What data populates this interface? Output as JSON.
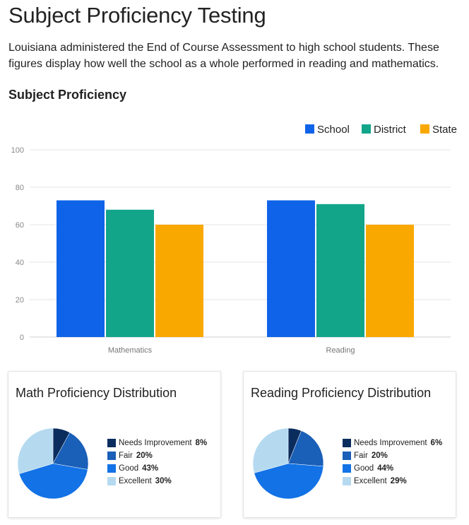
{
  "page": {
    "title": "Subject Proficiency Testing",
    "intro": "Louisiana administered the End of Course Assessment to high school students. These figures display how well the school as a whole performed in reading and mathematics.",
    "section_heading": "Subject Proficiency"
  },
  "chart_data": [
    {
      "type": "bar",
      "title": "Subject Proficiency",
      "categories": [
        "Mathematics",
        "Reading"
      ],
      "series": [
        {
          "name": "School",
          "values": [
            73,
            73
          ],
          "color": "#0f63e8"
        },
        {
          "name": "District",
          "values": [
            68,
            71
          ],
          "color": "#12a58a"
        },
        {
          "name": "State",
          "values": [
            60,
            60
          ],
          "color": "#f9a800"
        }
      ],
      "ylim": [
        0,
        100
      ],
      "yticks": [
        0,
        20,
        40,
        60,
        80,
        100
      ],
      "xlabel": "",
      "ylabel": "",
      "grid": true,
      "legend": "top-right"
    },
    {
      "type": "pie",
      "title": "Math Proficiency Distribution",
      "slices": [
        {
          "label": "Needs Improvement",
          "value": 8,
          "display": "8%",
          "color": "#0b2d5e"
        },
        {
          "label": "Fair",
          "value": 20,
          "display": "20%",
          "color": "#1a5fb8"
        },
        {
          "label": "Good",
          "value": 43,
          "display": "43%",
          "color": "#1272e6"
        },
        {
          "label": "Excellent",
          "value": 30,
          "display": "30%",
          "color": "#b5daf0"
        }
      ],
      "legend": "right"
    },
    {
      "type": "pie",
      "title": "Reading Proficiency Distribution",
      "slices": [
        {
          "label": "Needs Improvement",
          "value": 6,
          "display": "6%",
          "color": "#0b2d5e"
        },
        {
          "label": "Fair",
          "value": 20,
          "display": "20%",
          "color": "#1a5fb8"
        },
        {
          "label": "Good",
          "value": 44,
          "display": "44%",
          "color": "#1272e6"
        },
        {
          "label": "Excellent",
          "value": 29,
          "display": "29%",
          "color": "#b5daf0"
        }
      ],
      "legend": "right"
    }
  ]
}
